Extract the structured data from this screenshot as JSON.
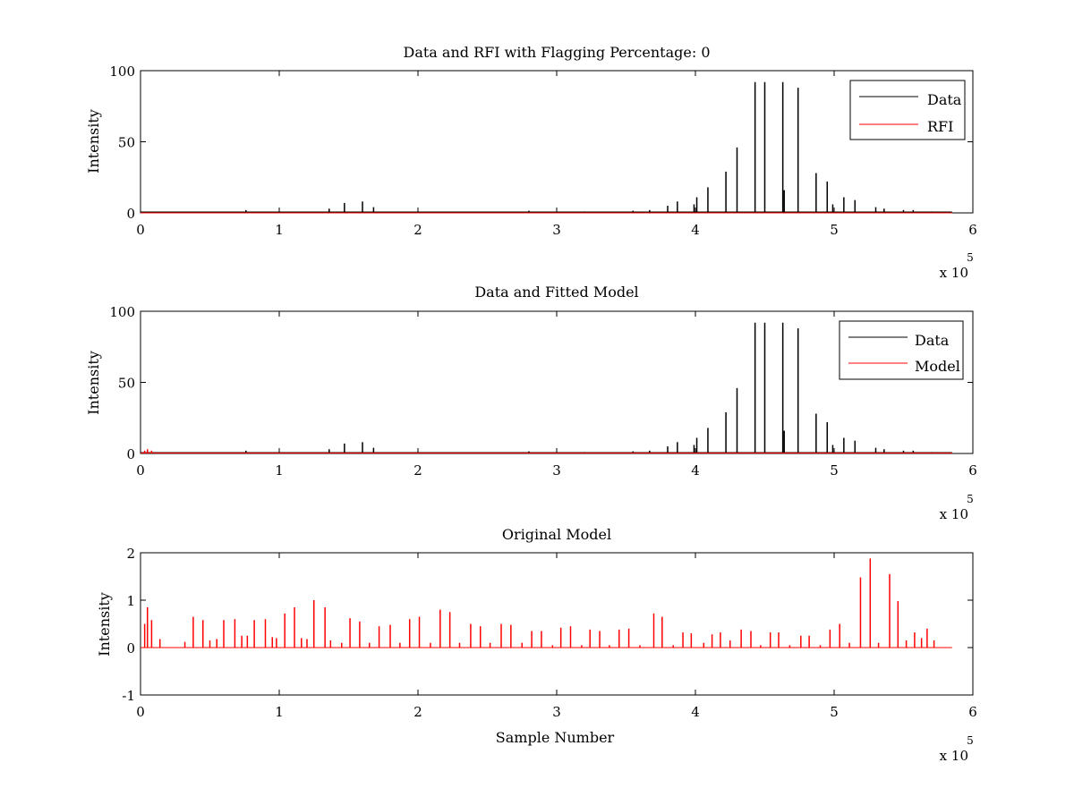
{
  "chart_data": [
    {
      "type": "line",
      "title": "Data and RFI with Flagging Percentage: 0",
      "xlabel": "",
      "ylabel": "Intensity",
      "xlim": [
        0,
        6
      ],
      "ylim": [
        0,
        100
      ],
      "xticks": [
        "0",
        "1",
        "2",
        "3",
        "4",
        "5",
        "6"
      ],
      "yticks": [
        "0",
        "50",
        "100"
      ],
      "x_multiplier": {
        "base": "x 10",
        "exponent": "5"
      },
      "legend": {
        "position": "top-right",
        "entries": [
          "Data",
          "RFI"
        ]
      },
      "series": [
        {
          "name": "Data",
          "color": "#000000",
          "baseline": 0.6,
          "peaks": [
            [
              0.76,
              2
            ],
            [
              1.36,
              3
            ],
            [
              1.47,
              7
            ],
            [
              1.6,
              8
            ],
            [
              1.68,
              4
            ],
            [
              2.8,
              1.5
            ],
            [
              3.2,
              1
            ],
            [
              3.55,
              1.5
            ],
            [
              3.67,
              2
            ],
            [
              3.8,
              5
            ],
            [
              3.87,
              8
            ],
            [
              3.99,
              6
            ],
            [
              4.01,
              11
            ],
            [
              4.09,
              18
            ],
            [
              4.22,
              29
            ],
            [
              4.3,
              46
            ],
            [
              4.43,
              92
            ],
            [
              4.5,
              92
            ],
            [
              4.63,
              92
            ],
            [
              4.64,
              16
            ],
            [
              4.74,
              88
            ],
            [
              4.87,
              28
            ],
            [
              4.95,
              22
            ],
            [
              4.99,
              6
            ],
            [
              5.07,
              11
            ],
            [
              5.15,
              9
            ],
            [
              5.3,
              4
            ],
            [
              5.36,
              3
            ],
            [
              5.5,
              2
            ],
            [
              5.57,
              2
            ],
            [
              5.7,
              1
            ]
          ]
        },
        {
          "name": "RFI",
          "color": "#ff0000",
          "baseline": 0,
          "peaks": []
        }
      ]
    },
    {
      "type": "line",
      "title": "Data and Fitted Model",
      "xlabel": "",
      "ylabel": "Intensity",
      "xlim": [
        0,
        6
      ],
      "ylim": [
        0,
        100
      ],
      "xticks": [
        "0",
        "1",
        "2",
        "3",
        "4",
        "5",
        "6"
      ],
      "yticks": [
        "0",
        "50",
        "100"
      ],
      "x_multiplier": {
        "base": "x 10",
        "exponent": "5"
      },
      "legend": {
        "position": "top-right",
        "entries": [
          "Data",
          "Model"
        ]
      },
      "series": [
        {
          "name": "Data",
          "color": "#000000",
          "baseline": 0.6,
          "peaks": [
            [
              0.76,
              2
            ],
            [
              1.36,
              3
            ],
            [
              1.47,
              7
            ],
            [
              1.6,
              8
            ],
            [
              1.68,
              4
            ],
            [
              2.8,
              1.5
            ],
            [
              3.2,
              1
            ],
            [
              3.55,
              1.5
            ],
            [
              3.67,
              2
            ],
            [
              3.8,
              5
            ],
            [
              3.87,
              8
            ],
            [
              3.99,
              6
            ],
            [
              4.01,
              11
            ],
            [
              4.09,
              18
            ],
            [
              4.22,
              29
            ],
            [
              4.3,
              46
            ],
            [
              4.43,
              92
            ],
            [
              4.5,
              92
            ],
            [
              4.63,
              92
            ],
            [
              4.64,
              16
            ],
            [
              4.74,
              88
            ],
            [
              4.87,
              28
            ],
            [
              4.95,
              22
            ],
            [
              4.99,
              6
            ],
            [
              5.07,
              11
            ],
            [
              5.15,
              9
            ],
            [
              5.3,
              4
            ],
            [
              5.36,
              3
            ],
            [
              5.5,
              2
            ],
            [
              5.57,
              2
            ],
            [
              5.7,
              1
            ]
          ]
        },
        {
          "name": "Model",
          "color": "#ff0000",
          "baseline": 0.3,
          "peaks": [
            [
              0.03,
              2
            ],
            [
              0.05,
              3
            ],
            [
              0.08,
              2
            ]
          ]
        }
      ]
    },
    {
      "type": "line",
      "title": "Original Model",
      "xlabel": "Sample Number",
      "ylabel": "Intensity",
      "xlim": [
        0,
        6
      ],
      "ylim": [
        -1,
        2
      ],
      "xticks": [
        "0",
        "1",
        "2",
        "3",
        "4",
        "5",
        "6"
      ],
      "yticks": [
        "-1",
        "0",
        "1",
        "2"
      ],
      "x_multiplier": {
        "base": "x 10",
        "exponent": "5"
      },
      "legend": null,
      "series": [
        {
          "name": "",
          "color": "#ff0000",
          "baseline": 0,
          "peaks": [
            [
              0.03,
              0.5
            ],
            [
              0.05,
              0.85
            ],
            [
              0.08,
              0.58
            ],
            [
              0.14,
              0.18
            ],
            [
              0.32,
              0.12
            ],
            [
              0.38,
              0.65
            ],
            [
              0.45,
              0.58
            ],
            [
              0.5,
              0.15
            ],
            [
              0.55,
              0.18
            ],
            [
              0.6,
              0.58
            ],
            [
              0.68,
              0.6
            ],
            [
              0.73,
              0.25
            ],
            [
              0.77,
              0.25
            ],
            [
              0.82,
              0.58
            ],
            [
              0.9,
              0.6
            ],
            [
              0.95,
              0.22
            ],
            [
              0.98,
              0.2
            ],
            [
              1.04,
              0.72
            ],
            [
              1.11,
              0.85
            ],
            [
              1.16,
              0.2
            ],
            [
              1.2,
              0.18
            ],
            [
              1.25,
              1.0
            ],
            [
              1.33,
              0.85
            ],
            [
              1.37,
              0.15
            ],
            [
              1.45,
              0.1
            ],
            [
              1.51,
              0.62
            ],
            [
              1.58,
              0.55
            ],
            [
              1.65,
              0.1
            ],
            [
              1.72,
              0.45
            ],
            [
              1.8,
              0.48
            ],
            [
              1.87,
              0.1
            ],
            [
              1.94,
              0.6
            ],
            [
              2.01,
              0.65
            ],
            [
              2.09,
              0.1
            ],
            [
              2.16,
              0.8
            ],
            [
              2.23,
              0.75
            ],
            [
              2.3,
              0.1
            ],
            [
              2.38,
              0.5
            ],
            [
              2.45,
              0.45
            ],
            [
              2.52,
              0.1
            ],
            [
              2.6,
              0.5
            ],
            [
              2.67,
              0.48
            ],
            [
              2.75,
              0.1
            ],
            [
              2.82,
              0.35
            ],
            [
              2.89,
              0.35
            ],
            [
              2.97,
              0.05
            ],
            [
              3.03,
              0.42
            ],
            [
              3.1,
              0.45
            ],
            [
              3.18,
              0.05
            ],
            [
              3.24,
              0.38
            ],
            [
              3.31,
              0.35
            ],
            [
              3.38,
              0.05
            ],
            [
              3.45,
              0.38
            ],
            [
              3.52,
              0.4
            ],
            [
              3.6,
              0.05
            ],
            [
              3.7,
              0.72
            ],
            [
              3.76,
              0.65
            ],
            [
              3.84,
              0.05
            ],
            [
              3.91,
              0.32
            ],
            [
              3.97,
              0.3
            ],
            [
              4.06,
              0.1
            ],
            [
              4.12,
              0.28
            ],
            [
              4.18,
              0.32
            ],
            [
              4.25,
              0.15
            ],
            [
              4.33,
              0.38
            ],
            [
              4.4,
              0.35
            ],
            [
              4.47,
              0.05
            ],
            [
              4.54,
              0.32
            ],
            [
              4.6,
              0.32
            ],
            [
              4.68,
              0.05
            ],
            [
              4.76,
              0.25
            ],
            [
              4.82,
              0.25
            ],
            [
              4.9,
              0.05
            ],
            [
              4.97,
              0.38
            ],
            [
              5.04,
              0.5
            ],
            [
              5.11,
              0.1
            ],
            [
              5.19,
              1.48
            ],
            [
              5.26,
              1.88
            ],
            [
              5.32,
              0.1
            ],
            [
              5.4,
              1.55
            ],
            [
              5.46,
              0.98
            ],
            [
              5.52,
              0.15
            ],
            [
              5.58,
              0.32
            ],
            [
              5.63,
              0.2
            ],
            [
              5.67,
              0.4
            ],
            [
              5.72,
              0.15
            ]
          ]
        }
      ]
    }
  ]
}
